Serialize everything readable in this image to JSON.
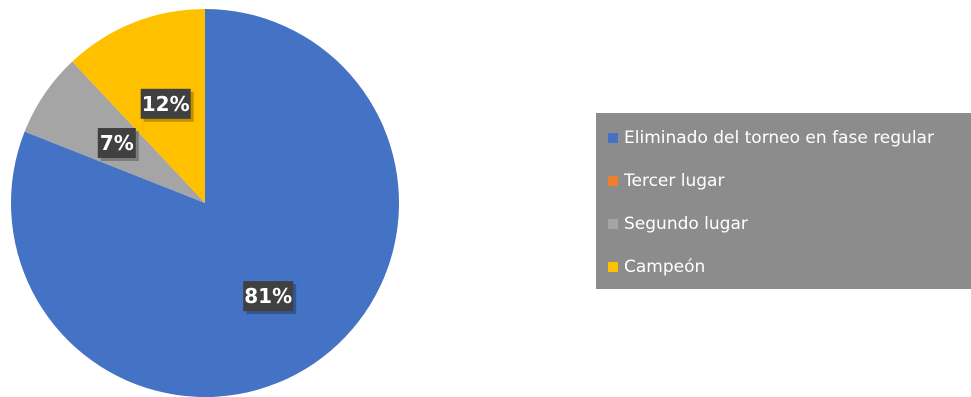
{
  "chart_data": {
    "type": "pie",
    "title": "",
    "categories": [
      "Eliminado del torneo en fase regular",
      "Tercer lugar",
      "Segundo lugar",
      "Campeón"
    ],
    "values": [
      81,
      0,
      7,
      12
    ],
    "data_labels": [
      "81%",
      "",
      "7%",
      "12%"
    ],
    "colors": [
      "#4472c4",
      "#ed7d31",
      "#a5a5a5",
      "#ffc000"
    ],
    "legend_placement": "right",
    "start_angle_deg": 0,
    "direction": "clockwise"
  },
  "legend": {
    "items": [
      {
        "label": "Eliminado del torneo en fase regular",
        "color": "#4472c4"
      },
      {
        "label": "Tercer lugar",
        "color": "#ed7d31"
      },
      {
        "label": "Segundo lugar",
        "color": "#a5a5a5"
      },
      {
        "label": "Campeón",
        "color": "#ffc000"
      }
    ]
  }
}
